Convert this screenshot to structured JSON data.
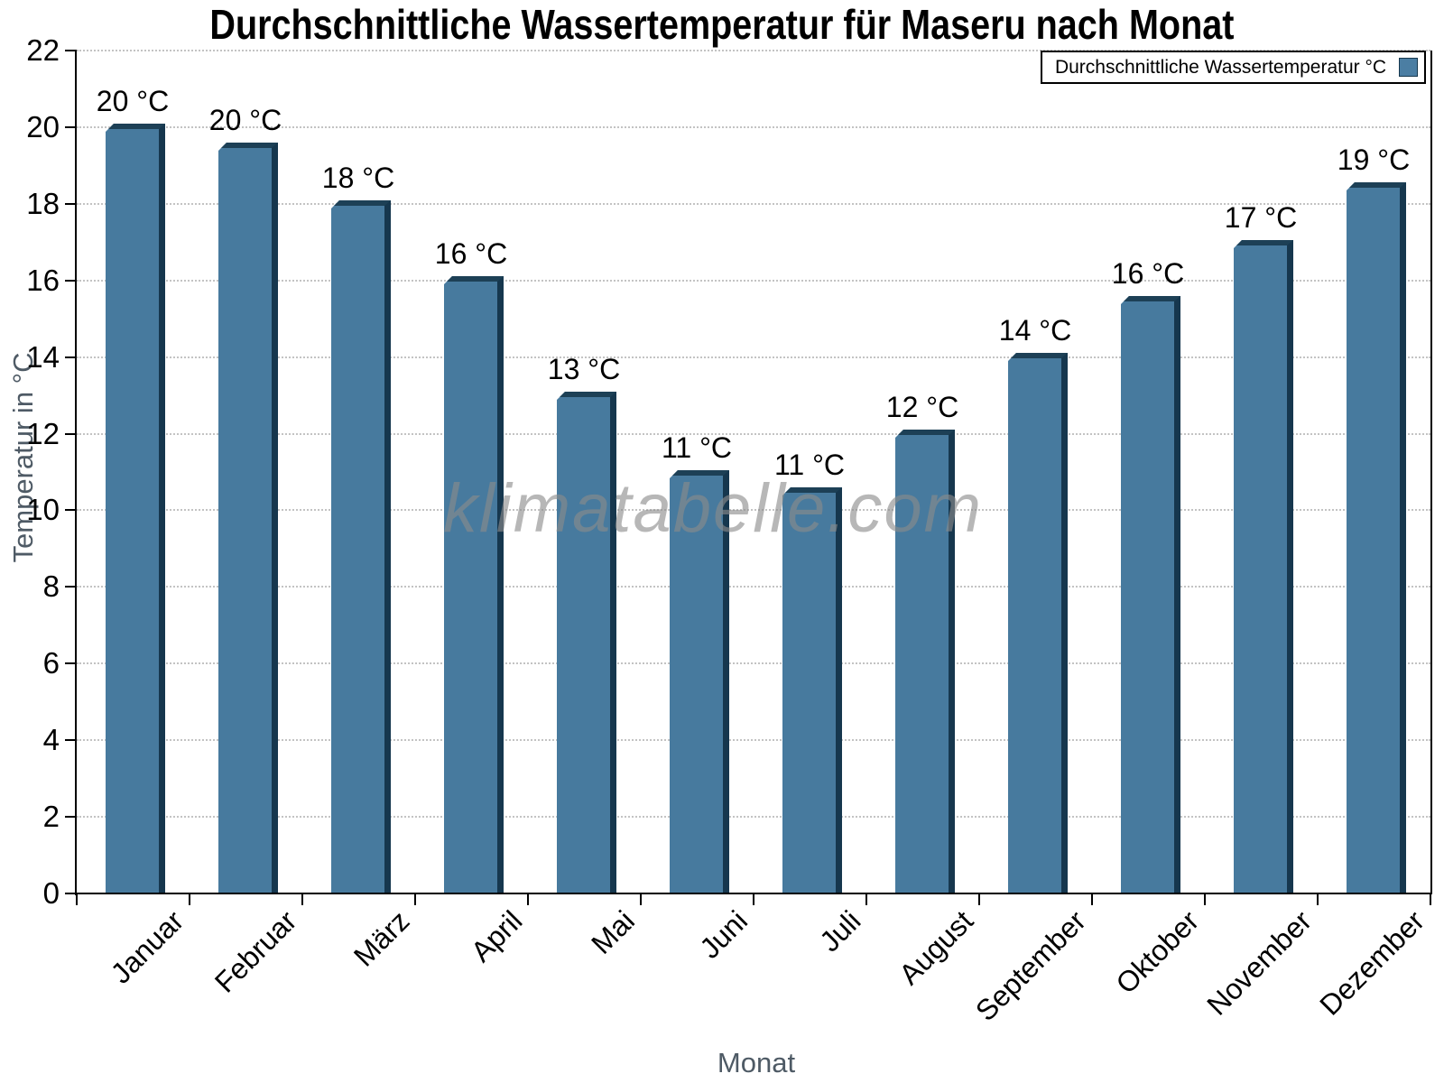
{
  "page": {
    "background": "#ffffff"
  },
  "watermark": "klimatabelle.com",
  "chart_data": {
    "type": "bar",
    "title": "Durchschnittliche Wassertemperatur für Maseru nach Monat",
    "categories": [
      "Januar",
      "Februar",
      "März",
      "April",
      "Mai",
      "Juni",
      "Juli",
      "August",
      "September",
      "Oktober",
      "November",
      "Dezember"
    ],
    "values": [
      20.1,
      19.6,
      18.1,
      16.1,
      13.1,
      11.05,
      10.6,
      12.1,
      14.1,
      15.6,
      17.05,
      18.55
    ],
    "bar_labels": [
      "20 °C",
      "20 °C",
      "18 °C",
      "16 °C",
      "13 °C",
      "11 °C",
      "11 °C",
      "12 °C",
      "14 °C",
      "16 °C",
      "17 °C",
      "19 °C"
    ],
    "xlabel": "Monat",
    "ylabel": "Temperatur in °C",
    "ylim": [
      0,
      22
    ],
    "ytick_step": 2,
    "yticks": [
      0,
      2,
      4,
      6,
      8,
      10,
      12,
      14,
      16,
      18,
      20,
      22
    ],
    "grid": "horizontal-dotted",
    "legend": {
      "label": "Durchschnittliche Wassertemperatur °C",
      "position": "top-right"
    },
    "colors": {
      "bar_fill": "#477a9e",
      "bar_edge_right": "#16374e",
      "bar_edge_top": "#1d4056",
      "legend_swatch": "#4b7ea3",
      "axis_title_text": "#4e5a65",
      "grid_line": "#c3c3c3",
      "axis_line": "#000000",
      "watermark_text": "#8c8c8c"
    }
  }
}
